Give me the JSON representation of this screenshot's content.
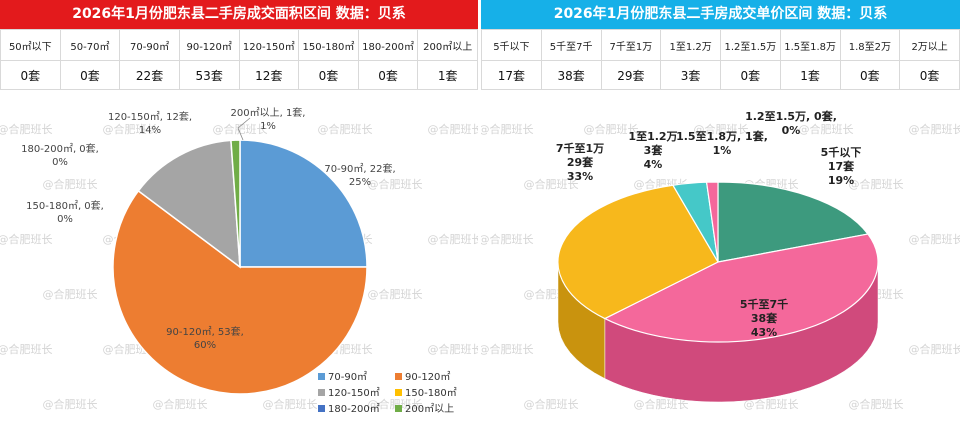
{
  "watermark": "@合肥班长",
  "left": {
    "title": "2026年1月份肥东县二手房成交面积区间 数据：贝系",
    "headers": [
      "50㎡以下",
      "50-70㎡",
      "70-90㎡",
      "90-120㎡",
      "120-150㎡",
      "150-180㎡",
      "180-200㎡",
      "200㎡以上"
    ],
    "values": [
      "0套",
      "0套",
      "22套",
      "53套",
      "12套",
      "0套",
      "0套",
      "1套"
    ]
  },
  "right": {
    "title": "2026年1月份肥东县二手房成交单价区间 数据：贝系",
    "headers": [
      "5千以下",
      "5千至7千",
      "7千至1万",
      "1至1.2万",
      "1.2至1.5万",
      "1.5至1.8万",
      "1.8至2万",
      "2万以上"
    ],
    "values": [
      "17套",
      "38套",
      "29套",
      "3套",
      "0套",
      "1套",
      "0套",
      "0套"
    ]
  },
  "chart_data": [
    {
      "type": "pie",
      "title": "",
      "categories": [
        "70-90㎡",
        "90-120㎡",
        "120-150㎡",
        "150-180㎡",
        "180-200㎡",
        "200㎡以上"
      ],
      "values": [
        22,
        53,
        12,
        0,
        0,
        1
      ],
      "percents": [
        "25%",
        "60%",
        "14%",
        "0%",
        "0%",
        "1%"
      ],
      "data_labels": [
        "70-90㎡, 22套, 25%",
        "90-120㎡, 53套, 60%",
        "120-150㎡, 12套, 14%",
        "150-180㎡, 0套, 0%",
        "180-200㎡, 0套, 0%",
        "200㎡以上, 1套, 1%"
      ],
      "colors": [
        "#5b9bd5",
        "#ed7d31",
        "#a5a5a5",
        "#ffc000",
        "#4472c4",
        "#70ad47"
      ],
      "legend": [
        "70-90㎡",
        "90-120㎡",
        "120-150㎡",
        "150-180㎡",
        "180-200㎡",
        "200㎡以上"
      ],
      "legend_position": "bottom-right"
    },
    {
      "type": "pie",
      "title": "",
      "categories": [
        "5千以下",
        "5千至7千",
        "7千至1万",
        "1至1.2万",
        "1.5至1.8万",
        "1.2至1.5万"
      ],
      "values": [
        17,
        38,
        29,
        3,
        1,
        0
      ],
      "percents": [
        "19%",
        "43%",
        "33%",
        "4%",
        "1%",
        "0%"
      ],
      "data_labels": [
        [
          "5千以下",
          "17套",
          "19%"
        ],
        [
          "5千至7千",
          "38套",
          "43%"
        ],
        [
          "7千至1万",
          "29套",
          "33%"
        ],
        [
          "1至1.2万",
          "3套",
          "4%"
        ],
        [
          "1.5至1.8万, 1套,",
          "1%"
        ],
        [
          "1.2至1.5万, 0套,",
          "0%"
        ]
      ],
      "colors": [
        "#3d9a7e",
        "#f4689b",
        "#f7b81c",
        "#45c8c8",
        "#f4689b",
        "#d9d9d9"
      ],
      "style": "3d"
    }
  ]
}
